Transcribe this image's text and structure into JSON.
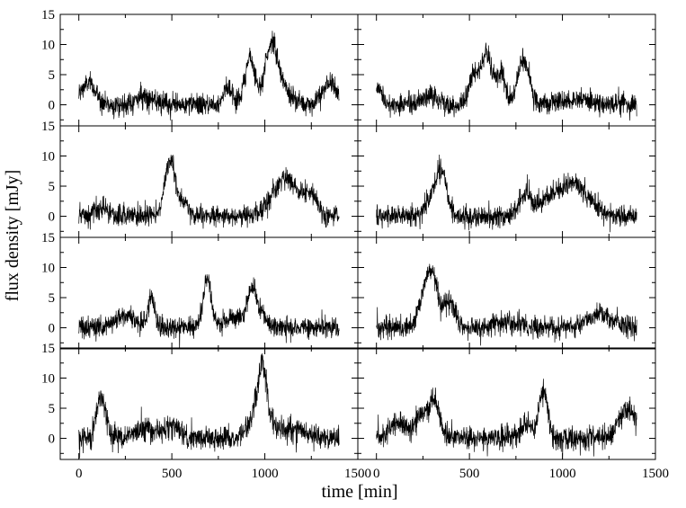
{
  "figure": {
    "xlabel": "time [min]",
    "ylabel": "flux density [mJy]"
  },
  "chart_data": {
    "type": "line",
    "layout": "4 rows x 2 columns of light-curve panels, shared axes",
    "xlabel": "time [min]",
    "ylabel": "flux density [mJy]",
    "xlim": [
      -100,
      1500
    ],
    "ylim": [
      -3.5,
      15
    ],
    "x_ticks": [
      0,
      500,
      1000,
      1500
    ],
    "x_tick_labels": [
      "0",
      "500",
      "1000",
      "1500"
    ],
    "y_ticks": [
      0,
      5,
      10,
      15
    ],
    "y_tick_labels": [
      "0",
      "5",
      "10",
      "15"
    ],
    "grid": false,
    "panels": [
      {
        "row": 0,
        "col": 0,
        "x_range": [
          0,
          1400
        ],
        "noise": 0.9,
        "baseline": 0,
        "flares": [
          [
            50,
            3.5,
            40
          ],
          [
            350,
            1.5,
            40
          ],
          [
            800,
            3,
            25
          ],
          [
            920,
            7.5,
            28
          ],
          [
            1035,
            10,
            35
          ],
          [
            1110,
            2,
            40
          ],
          [
            1350,
            3.5,
            40
          ]
        ]
      },
      {
        "row": 0,
        "col": 1,
        "x_range": [
          0,
          1400
        ],
        "noise": 0.9,
        "baseline": 0,
        "flares": [
          [
            10,
            3,
            20
          ],
          [
            290,
            1.5,
            40
          ],
          [
            520,
            5,
            22
          ],
          [
            590,
            8.5,
            30
          ],
          [
            670,
            5,
            25
          ],
          [
            790,
            7.5,
            30
          ],
          [
            1100,
            0.8,
            100
          ]
        ]
      },
      {
        "row": 1,
        "col": 0,
        "x_range": [
          0,
          1400
        ],
        "noise": 0.9,
        "baseline": 0,
        "flares": [
          [
            120,
            1,
            40
          ],
          [
            470,
            5,
            20
          ],
          [
            500,
            7,
            20
          ],
          [
            550,
            2.5,
            30
          ],
          [
            1080,
            4.5,
            60
          ],
          [
            1140,
            3,
            40
          ],
          [
            1240,
            4,
            40
          ]
        ]
      },
      {
        "row": 1,
        "col": 1,
        "x_range": [
          0,
          1400
        ],
        "noise": 0.9,
        "baseline": 0,
        "flares": [
          [
            300,
            2.5,
            40
          ],
          [
            350,
            6.5,
            30
          ],
          [
            800,
            3.5,
            30
          ],
          [
            950,
            3.5,
            70
          ],
          [
            1060,
            4,
            50
          ],
          [
            1150,
            2,
            50
          ]
        ]
      },
      {
        "row": 2,
        "col": 0,
        "x_range": [
          0,
          1400
        ],
        "noise": 0.9,
        "baseline": 0,
        "flares": [
          [
            250,
            2,
            60
          ],
          [
            390,
            5,
            18
          ],
          [
            690,
            8,
            22
          ],
          [
            830,
            2,
            40
          ],
          [
            930,
            6,
            25
          ],
          [
            980,
            2,
            30
          ]
        ]
      },
      {
        "row": 2,
        "col": 1,
        "x_range": [
          0,
          1400
        ],
        "noise": 0.9,
        "baseline": 0,
        "flares": [
          [
            270,
            7,
            35
          ],
          [
            310,
            5,
            25
          ],
          [
            390,
            4.5,
            30
          ],
          [
            700,
            0.8,
            80
          ],
          [
            1200,
            2.5,
            60
          ]
        ]
      },
      {
        "row": 3,
        "col": 0,
        "x_range": [
          0,
          1400
        ],
        "noise": 1.0,
        "baseline": 0,
        "flares": [
          [
            120,
            7,
            25
          ],
          [
            350,
            1.5,
            60
          ],
          [
            500,
            2,
            40
          ],
          [
            950,
            4,
            40
          ],
          [
            985,
            7,
            20
          ],
          [
            1010,
            4,
            30
          ],
          [
            1150,
            1.5,
            60
          ]
        ]
      },
      {
        "row": 3,
        "col": 1,
        "x_range": [
          0,
          1400
        ],
        "noise": 1.0,
        "baseline": 0,
        "flares": [
          [
            120,
            2.5,
            50
          ],
          [
            240,
            3.5,
            30
          ],
          [
            310,
            6,
            30
          ],
          [
            820,
            2,
            40
          ],
          [
            900,
            7.5,
            22
          ],
          [
            1350,
            5,
            45
          ]
        ]
      }
    ]
  }
}
